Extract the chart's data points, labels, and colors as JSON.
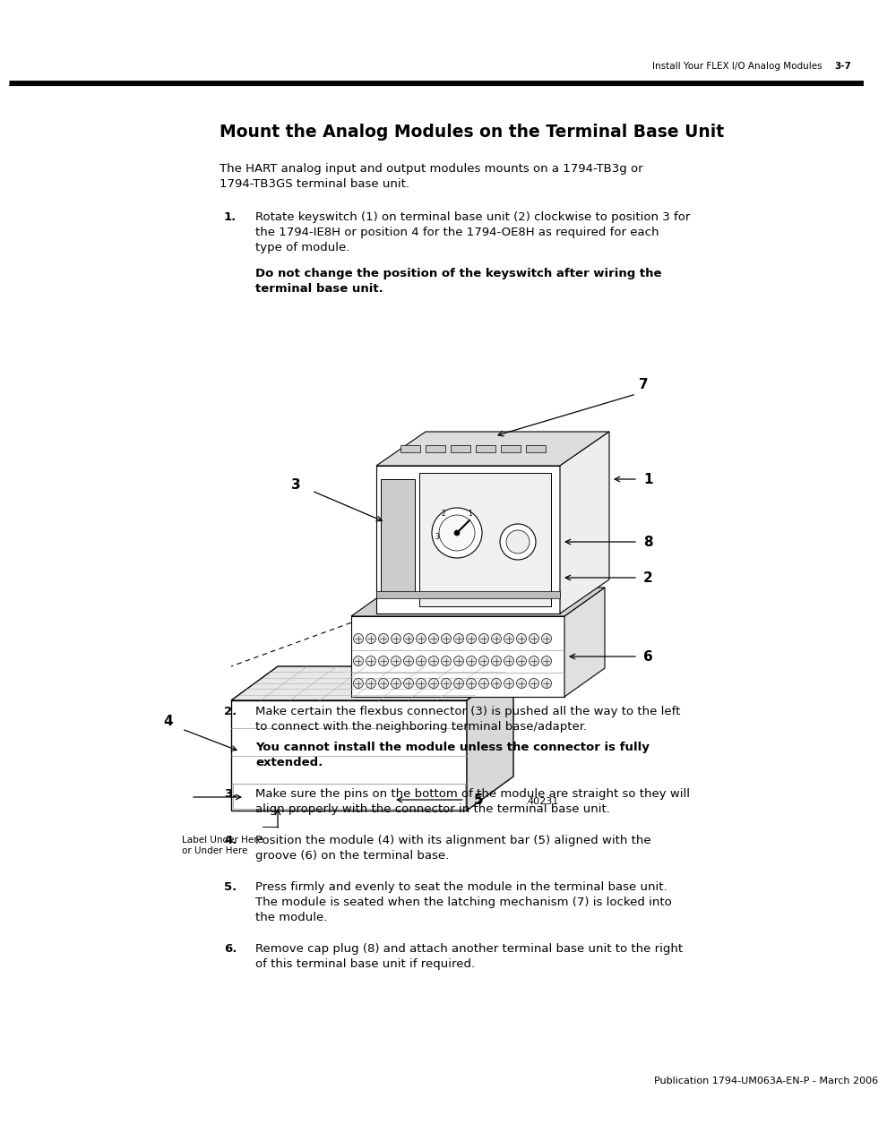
{
  "page_header_text": "Install Your FLEX I/O Analog Modules",
  "page_number": "3-7",
  "title": "Mount the Analog Modules on the Terminal Base Unit",
  "intro_text": "The HART analog input and output modules mounts on a 1794-TB3g or\n1794-TB3GS terminal base unit.",
  "step1_num": "1.",
  "step1_text": "Rotate keyswitch (1) on terminal base unit (2) clockwise to position 3 for\nthe 1794-IE8H or position 4 for the 1794-OE8H as required for each\ntype of module.",
  "step1_bold": "Do not change the position of the keyswitch after wiring the\nterminal base unit.",
  "step2_num": "2.",
  "step2_text": "Make certain the flexbus connector (3) is pushed all the way to the left\nto connect with the neighboring terminal base/adapter.",
  "step2_bold": "You cannot install the module unless the connector is fully\nextended.",
  "step3_num": "3.",
  "step3_text": "Make sure the pins on the bottom of the module are straight so they will\nalign properly with the connector in the terminal base unit.",
  "step4_num": "4.",
  "step4_text": "Position the module (4) with its alignment bar (5) aligned with the\ngroove (6) on the terminal base.",
  "step5_num": "5.",
  "step5_text": "Press firmly and evenly to seat the module in the terminal base unit.\nThe module is seated when the latching mechanism (7) is locked into\nthe module.",
  "step6_num": "6.",
  "step6_text": "Remove cap plug (8) and attach another terminal base unit to the right\nof this terminal base unit if required.",
  "footer_text": "Publication 1794-UM063A-EN-P - March 2006",
  "figure_note": "40231",
  "label_under_here": "Label Under Here\nor Under Here",
  "background_color": "#ffffff",
  "text_color": "#000000"
}
